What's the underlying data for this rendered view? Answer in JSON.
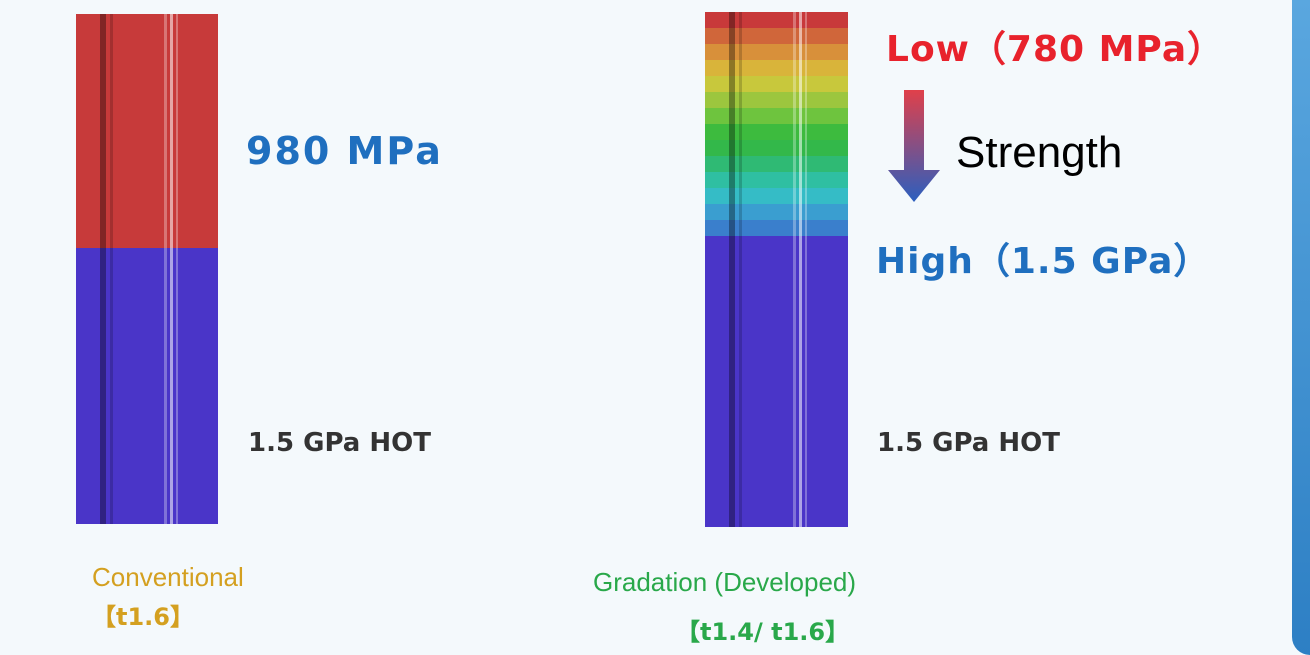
{
  "conventional": {
    "upper_label": "980 MPa",
    "lower_label": "1.5 GPa  HOT",
    "caption": "Conventional",
    "thickness": "【t1.6】",
    "colors": {
      "upper": "#c73a3a",
      "lower": "#4a35c8"
    }
  },
  "gradation": {
    "top_label": "Low（780 MPa）",
    "strength_label": "Strength",
    "high_label": "High（1.5 GPa）",
    "lower_label": "1.5 GPa  HOT",
    "caption": "Gradation (Developed)",
    "thickness": "【t1.4/ t1.6】",
    "band_colors": [
      "#c8393a",
      "#d0663a",
      "#d8903a",
      "#d9b43a",
      "#c8c83c",
      "#9cc63e",
      "#6ec43e",
      "#3dbb3e",
      "#33b84a",
      "#2fba74",
      "#2fbfa2",
      "#35bcc6",
      "#3a9ed0",
      "#3a7fcc",
      "#4a35c8"
    ]
  },
  "arrow_colors": {
    "top": "#e0404a",
    "bottom": "#2b5fbf"
  }
}
